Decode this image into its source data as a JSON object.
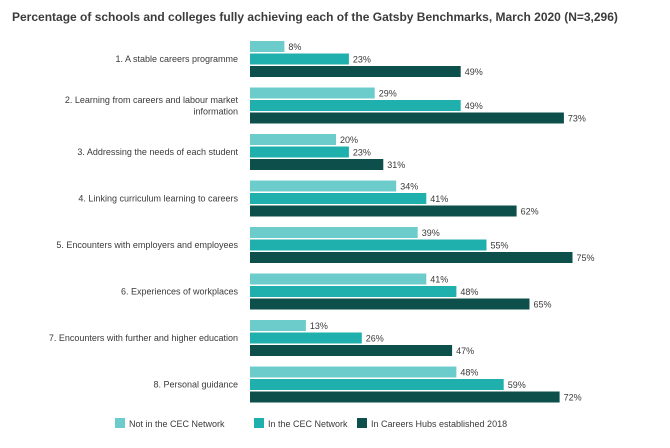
{
  "chart_data": {
    "type": "bar",
    "orientation": "horizontal",
    "title": "Percentage of schools and colleges fully achieving each of the Gatsby Benchmarks, March 2020 (N=3,296)",
    "categories": [
      [
        "1. A stable careers programme"
      ],
      [
        "2. Learning from careers and labour market",
        "information"
      ],
      [
        "3. Addressing the needs of each student"
      ],
      [
        "4. Linking curriculum learning to careers"
      ],
      [
        "5. Encounters with employers and employees"
      ],
      [
        "6. Experiences of workplaces"
      ],
      [
        "7. Encounters with further and higher education"
      ],
      [
        "8. Personal guidance"
      ]
    ],
    "series": [
      {
        "name": "Not in the CEC Network",
        "color": "#6ccccc",
        "values": [
          8,
          29,
          20,
          34,
          39,
          41,
          13,
          48
        ]
      },
      {
        "name": "In the CEC Network",
        "color": "#1fb0ad",
        "values": [
          23,
          49,
          23,
          41,
          55,
          48,
          26,
          59
        ]
      },
      {
        "name": "In Careers Hubs established 2018",
        "color": "#0d4f4a",
        "values": [
          49,
          73,
          31,
          62,
          75,
          65,
          47,
          72
        ]
      }
    ],
    "value_suffix": "%",
    "xlim": [
      0,
      100
    ],
    "grid": false,
    "legend": "bottom"
  }
}
